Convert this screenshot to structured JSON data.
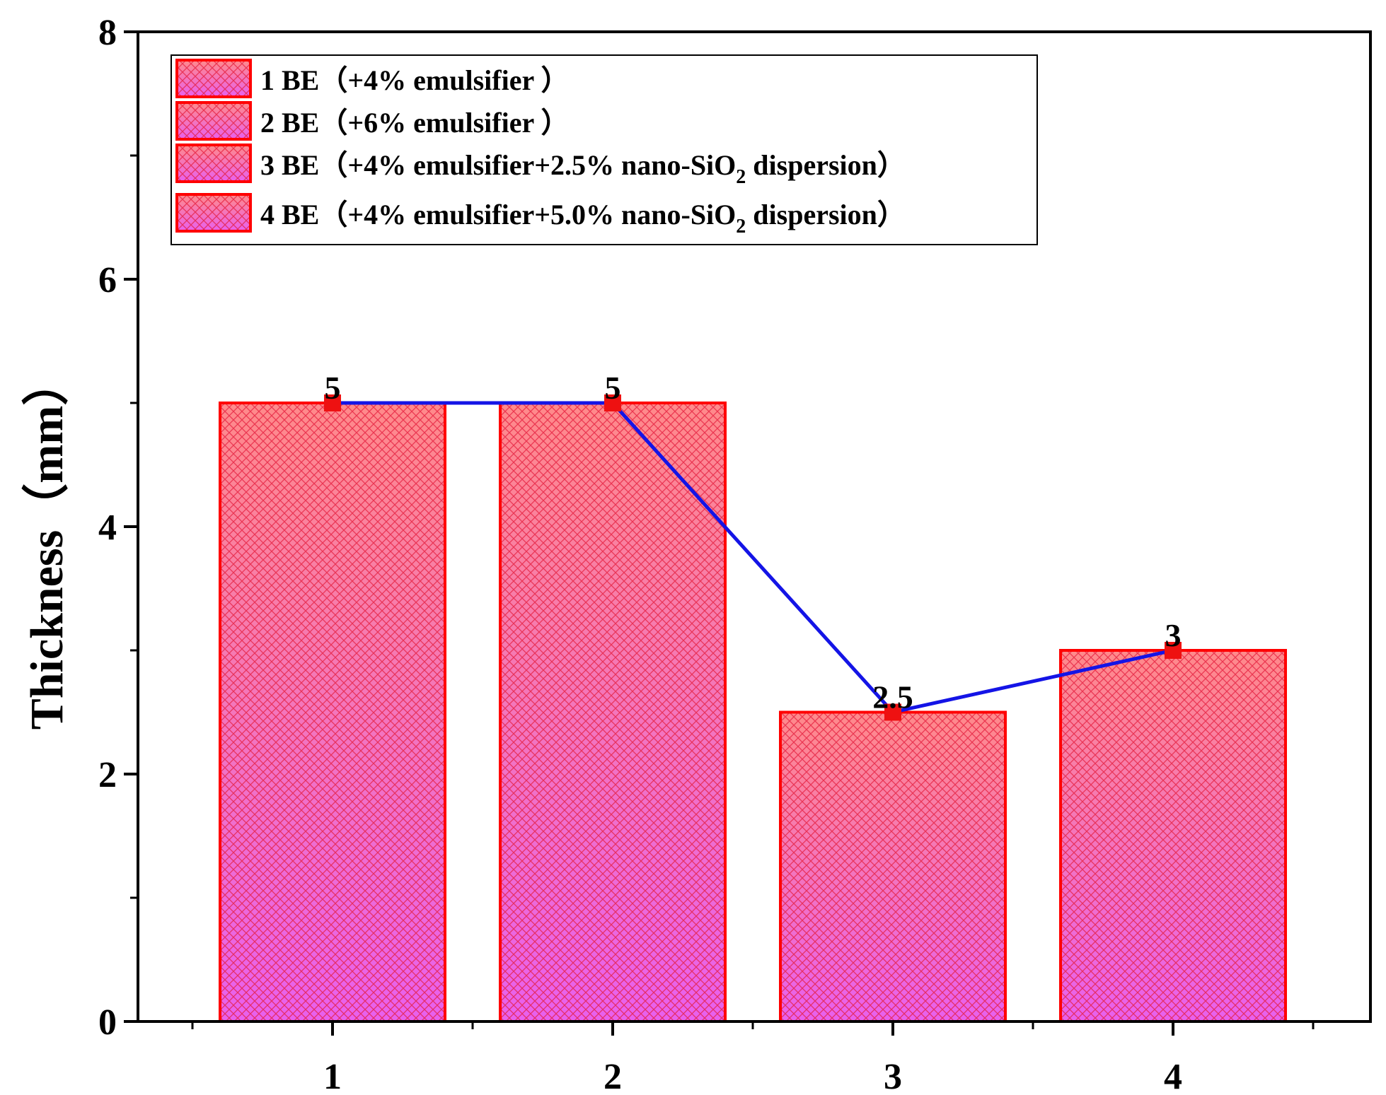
{
  "chart_data": {
    "type": "bar",
    "categories": [
      "1",
      "2",
      "3",
      "4"
    ],
    "values": [
      5,
      5,
      2.5,
      3
    ],
    "data_labels": [
      "5",
      "5",
      "2.5",
      "3"
    ],
    "line_overlay": {
      "values": [
        5,
        5,
        2.5,
        3
      ],
      "color": "#1414e6",
      "marker_color": "#ee1111"
    },
    "xlabel": "",
    "ylabel": "Thickness（mm）",
    "ylim": [
      0,
      8
    ],
    "y_ticks": [
      "0",
      "2",
      "4",
      "6",
      "8"
    ],
    "grid": false,
    "legend_position": "top-left",
    "legend": [
      {
        "main": "1 BE（+4% emulsifier ）"
      },
      {
        "main": "2 BE（+6% emulsifier ）"
      },
      {
        "main": "3 BE（+4% emulsifier+2.5% nano-SiO",
        "sub": "2",
        "tail": " dispersion）"
      },
      {
        "main": "4 BE（+4% emulsifier+5.0% nano-SiO",
        "sub": "2",
        "tail": " dispersion）"
      }
    ],
    "colors": {
      "bar_border": "#ff0000",
      "bar_top": "#ff8a8a",
      "bar_bottom": "#e860ee",
      "hatch": "#e41c3c",
      "line": "#1414e6",
      "marker": "#ee1111"
    }
  }
}
